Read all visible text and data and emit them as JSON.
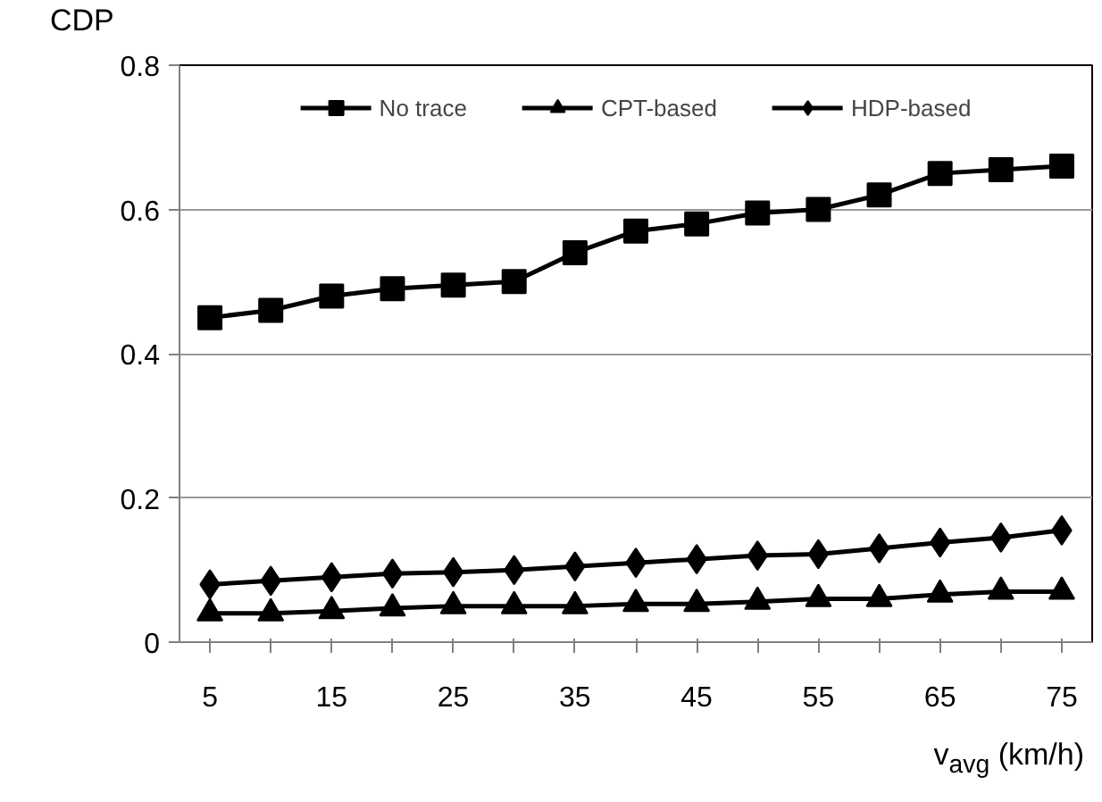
{
  "chart_data": {
    "type": "line",
    "ylabel": "CDP",
    "xlabel": "v$_{avg}$ (km/h)",
    "categories": [
      "5",
      null,
      "15",
      null,
      "25",
      null,
      "35",
      null,
      "45",
      null,
      "55",
      null,
      "65",
      null,
      "75"
    ],
    "series": [
      {
        "name": "No trace",
        "color": "#000000",
        "marker": "square",
        "values": [
          0.45,
          0.46,
          0.48,
          0.49,
          0.495,
          0.5,
          0.54,
          0.57,
          0.58,
          0.595,
          0.6,
          0.62,
          0.65,
          0.655,
          0.66
        ]
      },
      {
        "name": "CPT-based",
        "color": "#000000",
        "marker": "triangle",
        "values": [
          0.04,
          0.04,
          0.043,
          0.047,
          0.05,
          0.05,
          0.05,
          0.053,
          0.053,
          0.056,
          0.06,
          0.06,
          0.066,
          0.07,
          0.07
        ]
      },
      {
        "name": "HDP-based",
        "color": "#000000",
        "marker": "diamond",
        "values": [
          0.08,
          0.085,
          0.09,
          0.095,
          0.097,
          0.1,
          0.105,
          0.11,
          0.115,
          0.12,
          0.122,
          0.13,
          0.138,
          0.145,
          0.155
        ]
      }
    ],
    "ylim": [
      0,
      0.8
    ],
    "yticks": [
      {
        "value": 0,
        "label": "0"
      },
      0.2,
      0.4,
      0.6,
      0.8
    ],
    "grid": "y",
    "legend": "top",
    "line_style": "solid"
  }
}
